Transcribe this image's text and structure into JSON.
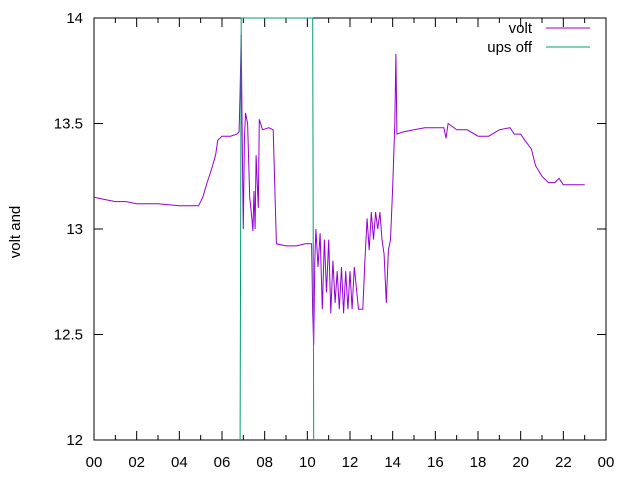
{
  "chart_data": {
    "type": "line",
    "title": "",
    "xlabel": "",
    "ylabel": "volt and",
    "xlim": [
      0,
      24
    ],
    "ylim": [
      12,
      14
    ],
    "x_ticks": [
      "00",
      "02",
      "04",
      "06",
      "08",
      "10",
      "12",
      "14",
      "16",
      "18",
      "20",
      "22",
      "00"
    ],
    "x_tick_values": [
      0,
      2,
      4,
      6,
      8,
      10,
      12,
      14,
      16,
      18,
      20,
      22,
      24
    ],
    "y_ticks": [
      "12",
      "12.5",
      "13",
      "13.5",
      "14"
    ],
    "y_tick_values": [
      12,
      12.5,
      13,
      13.5,
      14
    ],
    "grid": false,
    "legend_position": "top-right",
    "series": [
      {
        "name": "volt",
        "color": "#9400d3",
        "points": [
          [
            0.0,
            13.15
          ],
          [
            0.5,
            13.14
          ],
          [
            1.0,
            13.13
          ],
          [
            1.5,
            13.13
          ],
          [
            2.0,
            13.12
          ],
          [
            3.0,
            13.12
          ],
          [
            4.0,
            13.11
          ],
          [
            4.9,
            13.11
          ],
          [
            5.1,
            13.15
          ],
          [
            5.3,
            13.22
          ],
          [
            5.5,
            13.28
          ],
          [
            5.7,
            13.35
          ],
          [
            5.8,
            13.42
          ],
          [
            6.0,
            13.44
          ],
          [
            6.4,
            13.44
          ],
          [
            6.7,
            13.45
          ],
          [
            6.8,
            13.46
          ],
          [
            6.85,
            13.65
          ],
          [
            6.9,
            13.92
          ],
          [
            6.95,
            13.38
          ],
          [
            7.0,
            13.0
          ],
          [
            7.05,
            13.42
          ],
          [
            7.1,
            13.55
          ],
          [
            7.2,
            13.5
          ],
          [
            7.3,
            13.15
          ],
          [
            7.4,
            13.05
          ],
          [
            7.45,
            12.99
          ],
          [
            7.5,
            13.18
          ],
          [
            7.55,
            13.0
          ],
          [
            7.6,
            13.35
          ],
          [
            7.7,
            13.1
          ],
          [
            7.75,
            13.52
          ],
          [
            7.9,
            13.47
          ],
          [
            8.2,
            13.48
          ],
          [
            8.4,
            13.47
          ],
          [
            8.55,
            12.93
          ],
          [
            9.0,
            12.92
          ],
          [
            9.5,
            12.92
          ],
          [
            9.9,
            12.93
          ],
          [
            10.2,
            12.93
          ],
          [
            10.25,
            12.6
          ],
          [
            10.3,
            12.45
          ],
          [
            10.35,
            12.85
          ],
          [
            10.4,
            13.0
          ],
          [
            10.5,
            12.82
          ],
          [
            10.6,
            12.98
          ],
          [
            10.7,
            12.62
          ],
          [
            10.8,
            12.95
          ],
          [
            10.9,
            12.7
          ],
          [
            11.0,
            12.95
          ],
          [
            11.1,
            12.6
          ],
          [
            11.2,
            12.85
          ],
          [
            11.3,
            12.65
          ],
          [
            11.4,
            12.8
          ],
          [
            11.5,
            12.62
          ],
          [
            11.6,
            12.82
          ],
          [
            11.7,
            12.6
          ],
          [
            11.8,
            12.8
          ],
          [
            11.9,
            12.62
          ],
          [
            12.0,
            12.8
          ],
          [
            12.1,
            12.62
          ],
          [
            12.2,
            12.82
          ],
          [
            12.4,
            12.62
          ],
          [
            12.6,
            12.62
          ],
          [
            12.7,
            12.85
          ],
          [
            12.8,
            13.05
          ],
          [
            12.9,
            12.9
          ],
          [
            13.0,
            13.08
          ],
          [
            13.1,
            12.95
          ],
          [
            13.2,
            13.08
          ],
          [
            13.3,
            13.0
          ],
          [
            13.4,
            13.08
          ],
          [
            13.5,
            12.95
          ],
          [
            13.6,
            12.88
          ],
          [
            13.7,
            12.65
          ],
          [
            13.8,
            12.9
          ],
          [
            13.9,
            12.95
          ],
          [
            14.0,
            13.2
          ],
          [
            14.1,
            13.5
          ],
          [
            14.15,
            13.83
          ],
          [
            14.2,
            13.45
          ],
          [
            14.5,
            13.46
          ],
          [
            15.0,
            13.47
          ],
          [
            15.5,
            13.48
          ],
          [
            16.0,
            13.48
          ],
          [
            16.4,
            13.48
          ],
          [
            16.5,
            13.43
          ],
          [
            16.6,
            13.5
          ],
          [
            17.0,
            13.47
          ],
          [
            17.5,
            13.47
          ],
          [
            18.0,
            13.44
          ],
          [
            18.5,
            13.44
          ],
          [
            19.0,
            13.47
          ],
          [
            19.5,
            13.48
          ],
          [
            19.7,
            13.45
          ],
          [
            20.0,
            13.45
          ],
          [
            20.2,
            13.42
          ],
          [
            20.5,
            13.38
          ],
          [
            20.7,
            13.3
          ],
          [
            21.0,
            13.25
          ],
          [
            21.3,
            13.22
          ],
          [
            21.6,
            13.22
          ],
          [
            21.8,
            13.24
          ],
          [
            22.0,
            13.21
          ],
          [
            22.5,
            13.21
          ],
          [
            23.0,
            13.21
          ]
        ]
      },
      {
        "name": "ups off",
        "color": "#009e73",
        "points": [
          [
            6.85,
            12.0
          ],
          [
            6.9,
            14.0
          ],
          [
            10.25,
            14.0
          ],
          [
            10.3,
            12.0
          ]
        ]
      }
    ]
  }
}
